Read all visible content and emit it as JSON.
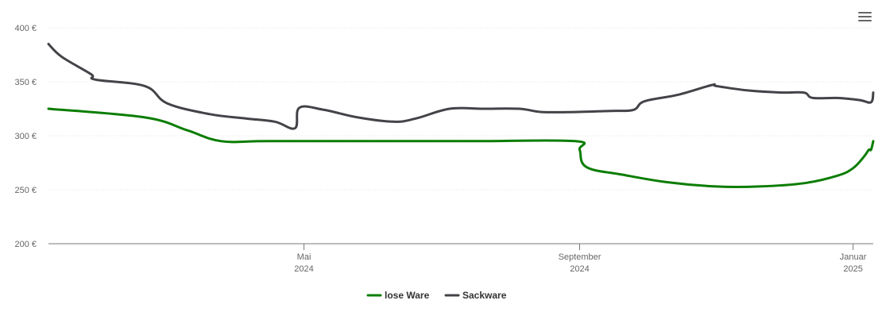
{
  "chart_data": {
    "type": "line",
    "y_axis": {
      "min": 200,
      "max": 400,
      "tick_values": [
        200,
        250,
        300,
        350,
        400
      ],
      "tick_labels": [
        "200 €",
        "250 €",
        "300 €",
        "350 €",
        "400 €"
      ],
      "grid": true
    },
    "x_axis": {
      "range": [
        "2024-01-08",
        "2025-01-10"
      ],
      "ticks": [
        {
          "date": "2024-05-01",
          "line1": "Mai",
          "line2": "2024"
        },
        {
          "date": "2024-09-01",
          "line1": "September",
          "line2": "2024"
        },
        {
          "date": "2025-01-01",
          "line1": "Januar",
          "line2": "2025"
        }
      ]
    },
    "legend": {
      "position": "bottom-center"
    },
    "series": [
      {
        "name": "lose Ware",
        "color": "#0a7d00",
        "points": [
          [
            "2024-01-08",
            325
          ],
          [
            "2024-02-20",
            317
          ],
          [
            "2024-03-10",
            305
          ],
          [
            "2024-03-25",
            295
          ],
          [
            "2024-04-15",
            295
          ],
          [
            "2024-06-01",
            295
          ],
          [
            "2024-07-15",
            295
          ],
          [
            "2024-08-30",
            295
          ],
          [
            "2024-09-01",
            287
          ],
          [
            "2024-09-04",
            271
          ],
          [
            "2024-09-20",
            264
          ],
          [
            "2024-10-10",
            257
          ],
          [
            "2024-11-01",
            253
          ],
          [
            "2024-11-20",
            253
          ],
          [
            "2024-12-10",
            256
          ],
          [
            "2024-12-25",
            263
          ],
          [
            "2025-01-01",
            270
          ],
          [
            "2025-01-06",
            281
          ],
          [
            "2025-01-08",
            287
          ],
          [
            "2025-01-09",
            287
          ],
          [
            "2025-01-10",
            295
          ]
        ]
      },
      {
        "name": "Sackware",
        "color": "#434348",
        "points": [
          [
            "2024-01-08",
            385
          ],
          [
            "2024-01-14",
            373
          ],
          [
            "2024-01-27",
            357
          ],
          [
            "2024-01-29",
            352
          ],
          [
            "2024-02-20",
            346
          ],
          [
            "2024-03-01",
            330
          ],
          [
            "2024-03-20",
            320
          ],
          [
            "2024-04-05",
            316
          ],
          [
            "2024-04-18",
            313
          ],
          [
            "2024-04-27",
            307
          ],
          [
            "2024-04-29",
            326
          ],
          [
            "2024-05-10",
            324
          ],
          [
            "2024-05-25",
            317
          ],
          [
            "2024-06-10",
            313
          ],
          [
            "2024-06-20",
            316
          ],
          [
            "2024-07-05",
            325
          ],
          [
            "2024-07-20",
            325
          ],
          [
            "2024-08-05",
            325
          ],
          [
            "2024-08-15",
            322
          ],
          [
            "2024-08-30",
            322
          ],
          [
            "2024-09-15",
            323
          ],
          [
            "2024-09-25",
            324
          ],
          [
            "2024-09-30",
            332
          ],
          [
            "2024-10-15",
            338
          ],
          [
            "2024-10-30",
            347
          ],
          [
            "2024-11-01",
            346
          ],
          [
            "2024-11-15",
            342
          ],
          [
            "2024-11-30",
            340
          ],
          [
            "2024-12-10",
            340
          ],
          [
            "2024-12-14",
            335
          ],
          [
            "2024-12-25",
            335
          ],
          [
            "2025-01-04",
            333
          ],
          [
            "2025-01-09",
            331
          ],
          [
            "2025-01-10",
            340
          ]
        ]
      }
    ]
  }
}
